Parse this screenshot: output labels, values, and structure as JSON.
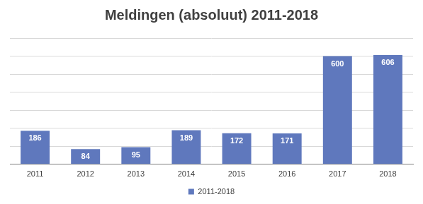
{
  "chart_data": {
    "type": "bar",
    "title": "Meldingen (absoluut) 2011-2018",
    "categories": [
      "2011",
      "2012",
      "2013",
      "2014",
      "2015",
      "2016",
      "2017",
      "2018"
    ],
    "series": [
      {
        "name": "2011-2018",
        "color": "#5f78bd",
        "values": [
          186,
          84,
          95,
          189,
          172,
          171,
          600,
          606
        ]
      }
    ],
    "ylim": [
      0,
      700
    ],
    "yticks": [
      0,
      100,
      200,
      300,
      400,
      500,
      600,
      700
    ],
    "grid": true,
    "legend": "bottom",
    "data_labels": true,
    "tick_labels": "x"
  }
}
